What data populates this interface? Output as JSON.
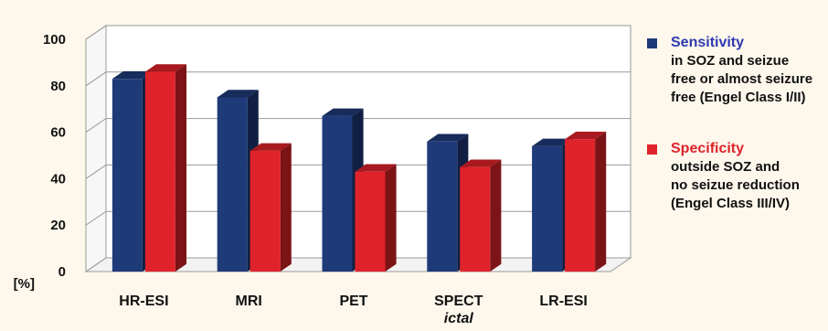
{
  "chart_data": {
    "type": "bar",
    "categories": [
      "HR-ESI",
      "MRI",
      "PET",
      "SPECT",
      "LR-ESI"
    ],
    "category_sublabels": [
      "",
      "",
      "",
      "ictal",
      ""
    ],
    "y_unit_label": "[%]",
    "ylim": [
      0,
      100
    ],
    "yticks": [
      0,
      20,
      40,
      60,
      80,
      100
    ],
    "grid": true,
    "legend_position": "right",
    "series": [
      {
        "name": "Sensitivity",
        "values": [
          83,
          75,
          67,
          56,
          54
        ],
        "color": "#1e3a78"
      },
      {
        "name": "Specificity",
        "values": [
          86,
          52,
          43,
          45,
          57
        ],
        "color": "#e0232a"
      }
    ]
  },
  "legend": {
    "sensitivity_title": "Sensitivity",
    "sensitivity_desc": [
      "in SOZ and seizue",
      "free or almost seizure",
      "free (Engel Class I/II)"
    ],
    "specificity_title": "Specificity",
    "specificity_desc": [
      "outside SOZ and",
      "no seizue reduction",
      "(Engel Class III/IV)"
    ],
    "sensitivity_title_color": "#2f3ab0",
    "specificity_title_color": "#e0232a"
  }
}
